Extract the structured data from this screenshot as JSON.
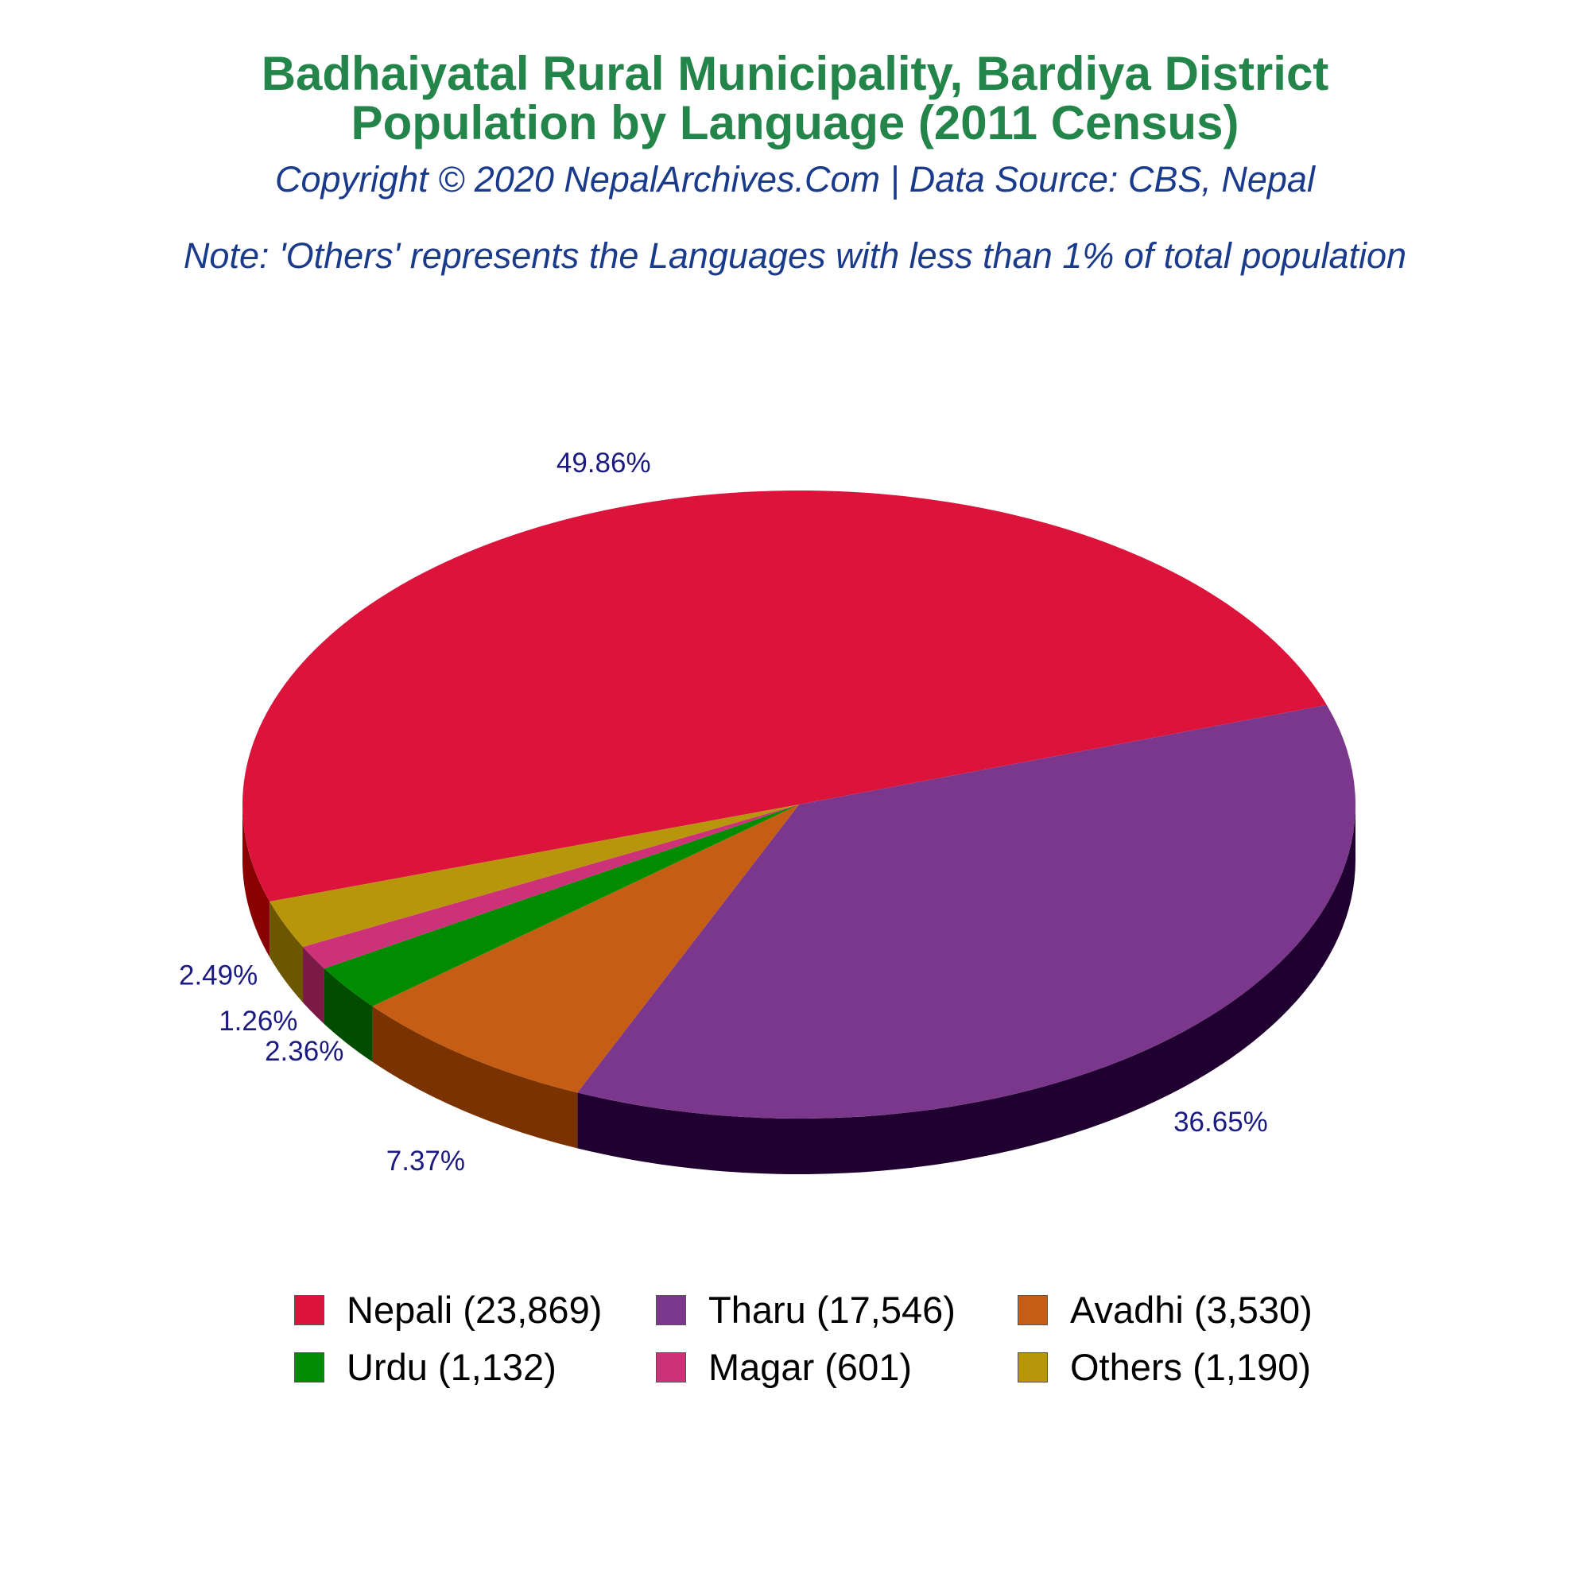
{
  "header": {
    "title_line1": "Badhaiyatal Rural Municipality, Bardiya District",
    "title_line2": "Population by Language (2011 Census)",
    "copyright": "Copyright © 2020 NepalArchives.Com | Data Source: CBS, Nepal",
    "note": "Note: 'Others' represents the Languages with less than 1% of total population"
  },
  "chart_data": {
    "type": "pie",
    "style": "3d",
    "title": "Badhaiyatal Rural Municipality, Bardiya District Population by Language (2011 Census)",
    "legend_position": "bottom",
    "slices": [
      {
        "label": "Nepali",
        "value": 23869,
        "percent_label": "49.86%",
        "legend": "Nepali (23,869)",
        "color": "#dc143c",
        "side_color": "#8b0000"
      },
      {
        "label": "Tharu",
        "value": 17546,
        "percent_label": "36.65%",
        "legend": "Tharu (17,546)",
        "color": "#7b378b",
        "side_color": "#200030"
      },
      {
        "label": "Avadhi",
        "value": 3530,
        "percent_label": "7.37%",
        "legend": "Avadhi (3,530)",
        "color": "#c55e14",
        "side_color": "#7a3300"
      },
      {
        "label": "Urdu",
        "value": 1132,
        "percent_label": "2.36%",
        "legend": "Urdu (1,132)",
        "color": "#008b00",
        "side_color": "#004d00"
      },
      {
        "label": "Magar",
        "value": 601,
        "percent_label": "1.26%",
        "legend": "Magar (601)",
        "color": "#cd3278",
        "side_color": "#7a1a45"
      },
      {
        "label": "Others",
        "value": 1190,
        "percent_label": "2.49%",
        "legend": "Others (1,190)",
        "color": "#b8960b",
        "side_color": "#6b5700"
      }
    ]
  }
}
